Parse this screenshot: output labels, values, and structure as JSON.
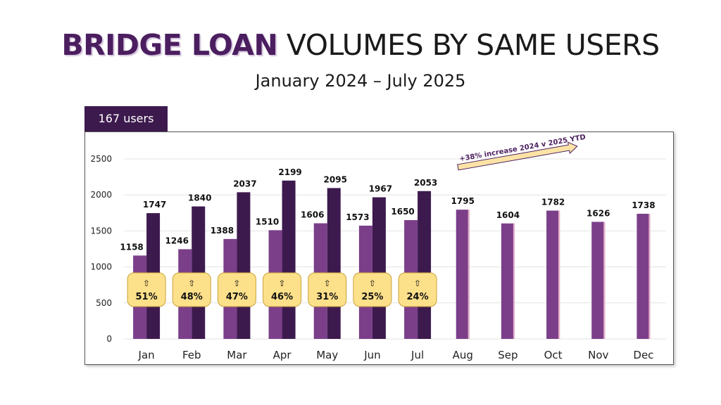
{
  "title": {
    "bold": "BRIDGE LOAN",
    "rest": "VOLUMES BY SAME USERS"
  },
  "subtitle": "January 2024 – July 2025",
  "users_tab": "167 users",
  "annotation": "+38% increase 2024 v 2025 YTD",
  "badge_arrow": "⇧",
  "colors": {
    "series_2024": "#7b3f8a",
    "series_2025": "#3d1a4e",
    "badge_fill": "#fde08a",
    "badge_stroke": "#c9a23a",
    "arrow_fill": "#fbe3a6",
    "arrow_stroke": "#4b1e5f",
    "gridline": "#e3e3e3",
    "tab": "#3d1a4e"
  },
  "chart_data": {
    "type": "bar",
    "categories": [
      "Jan",
      "Feb",
      "Mar",
      "Apr",
      "May",
      "Jun",
      "Jul",
      "Aug",
      "Sep",
      "Oct",
      "Nov",
      "Dec"
    ],
    "series": [
      {
        "values": [
          1158,
          1246,
          1388,
          1510,
          1606,
          1573,
          1650,
          1795,
          1604,
          1782,
          1626,
          1738
        ]
      },
      {
        "values": [
          1747,
          1840,
          2037,
          2199,
          2095,
          1967,
          2053,
          null,
          null,
          null,
          null,
          null
        ]
      }
    ],
    "badges": [
      "51%",
      "48%",
      "47%",
      "46%",
      "31%",
      "25%",
      "24%"
    ],
    "yticks": [
      0,
      500,
      1000,
      1500,
      2000,
      2500
    ],
    "ylim": [
      0,
      2500
    ],
    "grid": true,
    "legend": "none"
  }
}
